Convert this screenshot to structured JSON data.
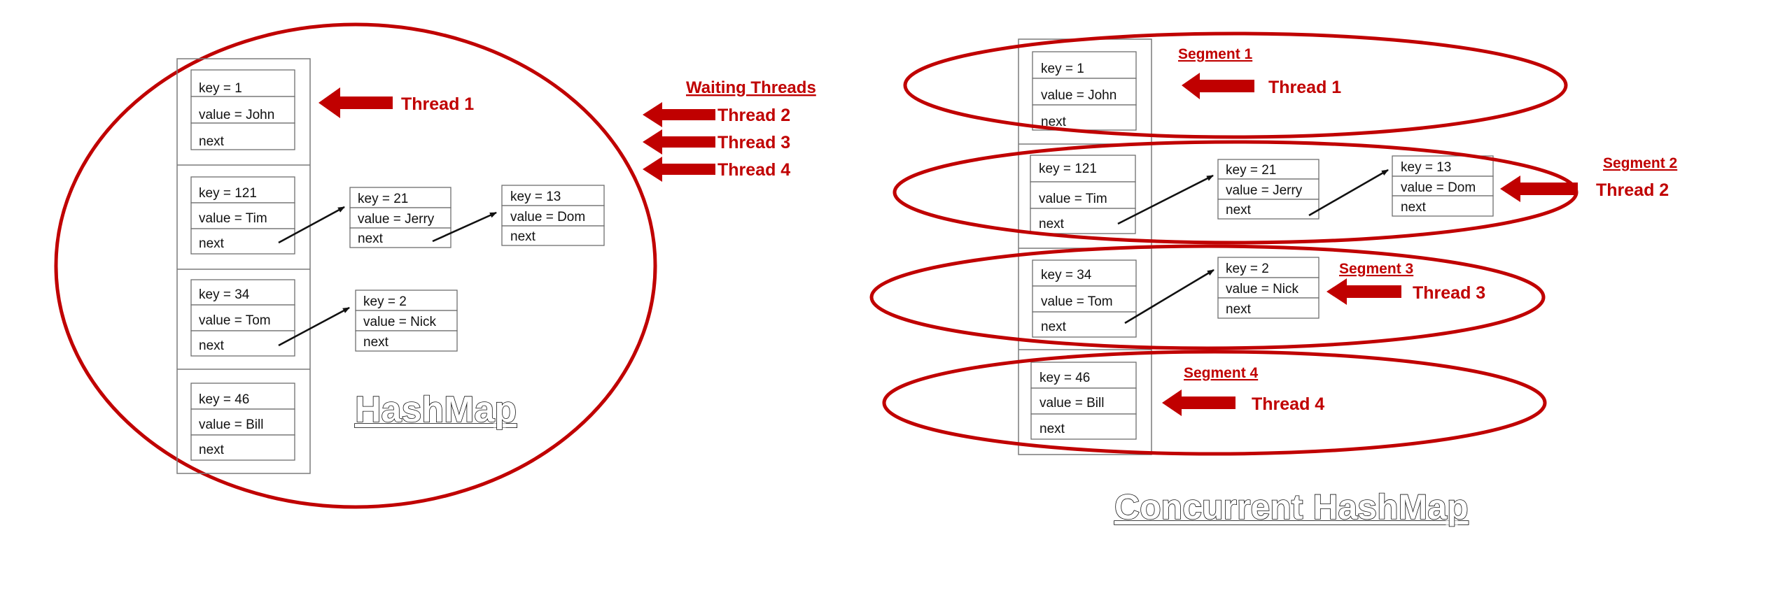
{
  "hashmap": {
    "title": "HashMap",
    "waiting_label": "Waiting Threads",
    "threads": [
      "Thread 1",
      "Thread 2",
      "Thread 3",
      "Thread 4"
    ],
    "buckets": [
      {
        "key": "key = 1",
        "value": "value = John",
        "next": "next"
      },
      {
        "key": "key = 121",
        "value": "value = Tim",
        "next": "next"
      },
      {
        "key": "key = 34",
        "value": "value = Tom",
        "next": "next"
      },
      {
        "key": "key = 46",
        "value": "value = Bill",
        "next": "next"
      }
    ],
    "chain_nodes": [
      {
        "key": "key = 21",
        "value": "value = Jerry",
        "next": "next"
      },
      {
        "key": "key = 13",
        "value": "value = Dom",
        "next": "next"
      },
      {
        "key": "key = 2",
        "value": "value = Nick",
        "next": "next"
      }
    ]
  },
  "concurrent": {
    "title": "Concurrent HashMap",
    "segments": [
      "Segment 1",
      "Segment 2",
      "Segment 3",
      "Segment 4"
    ],
    "threads": [
      "Thread 1",
      "Thread 2",
      "Thread 3",
      "Thread 4"
    ],
    "buckets": [
      {
        "key": "key = 1",
        "value": "value = John",
        "next": "next"
      },
      {
        "key": "key = 121",
        "value": "value = Tim",
        "next": "next"
      },
      {
        "key": "key = 34",
        "value": "value = Tom",
        "next": "next"
      },
      {
        "key": "key = 46",
        "value": "value = Bill",
        "next": "next"
      }
    ],
    "chain_nodes": [
      {
        "key": "key = 21",
        "value": "value = Jerry",
        "next": "next"
      },
      {
        "key": "key = 13",
        "value": "value = Dom",
        "next": "next"
      },
      {
        "key": "key = 2",
        "value": "value = Nick",
        "next": "next"
      }
    ]
  },
  "colors": {
    "accent": "#c00000",
    "line": "#111111",
    "border": "#6e6e6e"
  },
  "icons": [
    "block-arrow-left-icon",
    "pointer-arrow-icon"
  ]
}
